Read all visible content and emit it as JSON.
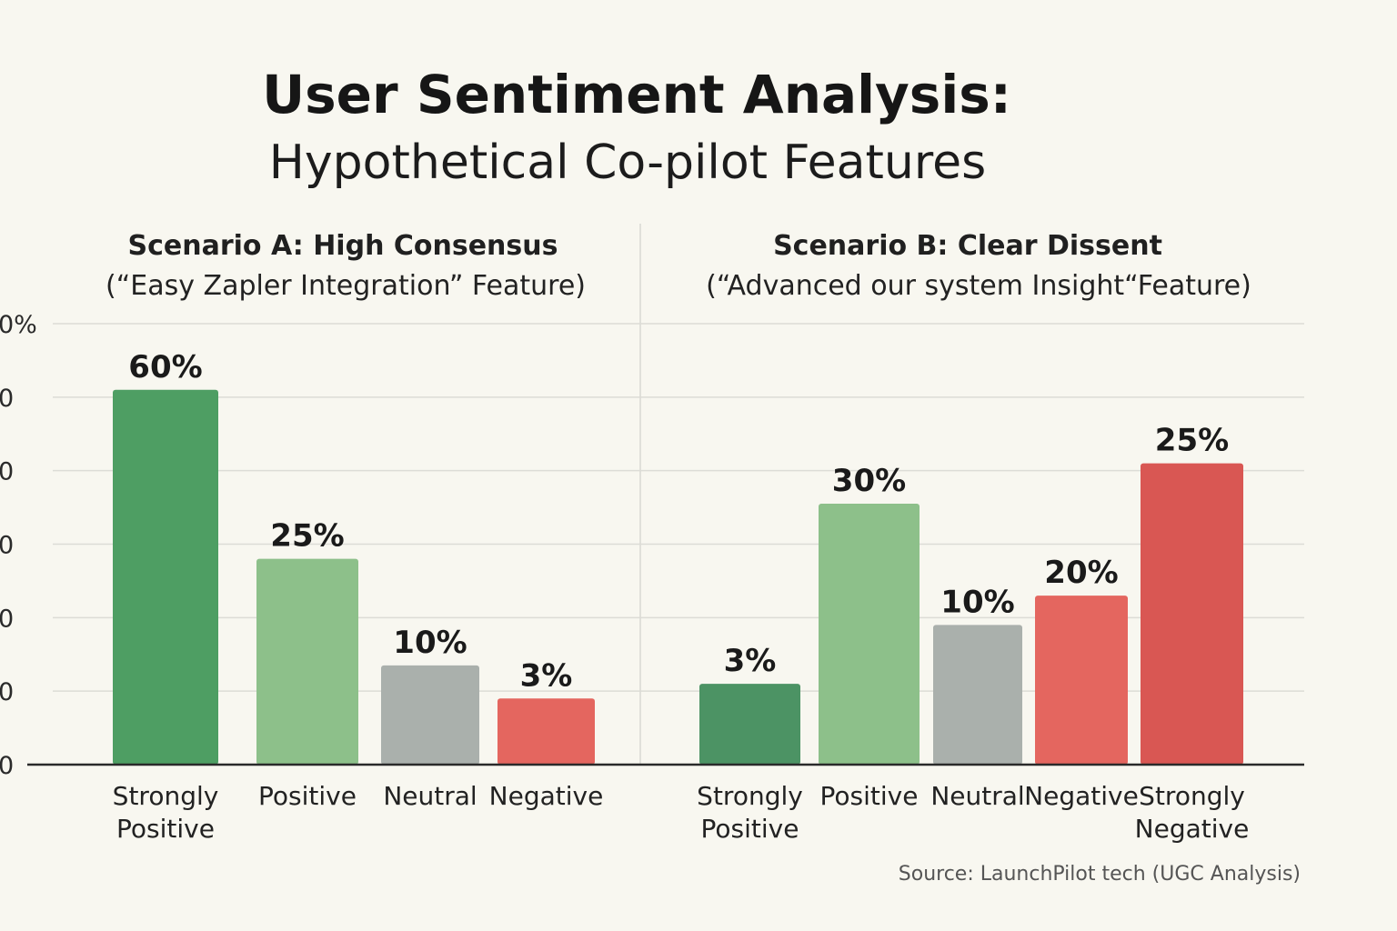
{
  "chart_data": {
    "type": "bar",
    "title": "User Sentiment Analysis:",
    "subtitle": "Hypothetical Co-pilot Features",
    "y_ticks": [
      "0%",
      "0",
      "0",
      "0",
      "0",
      "0",
      "0"
    ],
    "ylim": [
      0,
      60
    ],
    "grid": true,
    "source": "Source: LaunchPilot tech (UGC Analysis)",
    "panels": [
      {
        "title": "Scenario A: High Consensus",
        "subtitle": "(“Easy Zapler Integration” Feature)",
        "categories": [
          [
            "Strongly",
            "Positive"
          ],
          [
            "Positive"
          ],
          [
            "Neutral"
          ],
          [
            "Negative"
          ]
        ],
        "values": [
          60,
          25,
          10,
          3
        ],
        "labels": [
          "60%",
          "25%",
          "10%",
          "3%"
        ],
        "colors": [
          "#4e9e63",
          "#8dc08a",
          "#aab0ac",
          "#e4665f"
        ],
        "plot_heights_0_to_60": [
          51,
          28,
          13.5,
          9
        ]
      },
      {
        "title": "Scenario B: Clear Dissent",
        "subtitle": "(“Advanced our system Insight“Feature)",
        "categories": [
          [
            "Strongly",
            "Positive"
          ],
          [
            "Positive"
          ],
          [
            "Neutral"
          ],
          [
            "Negative"
          ],
          [
            "Strongly",
            "Negative"
          ]
        ],
        "values": [
          3,
          30,
          10,
          20,
          25
        ],
        "labels": [
          "3%",
          "30%",
          "10%",
          "20%",
          "25%"
        ],
        "colors": [
          "#4c9364",
          "#8dc08a",
          "#aab0ac",
          "#e4665f",
          "#d95753"
        ],
        "plot_heights_0_to_60": [
          11,
          35.5,
          19,
          23,
          41
        ]
      }
    ]
  }
}
